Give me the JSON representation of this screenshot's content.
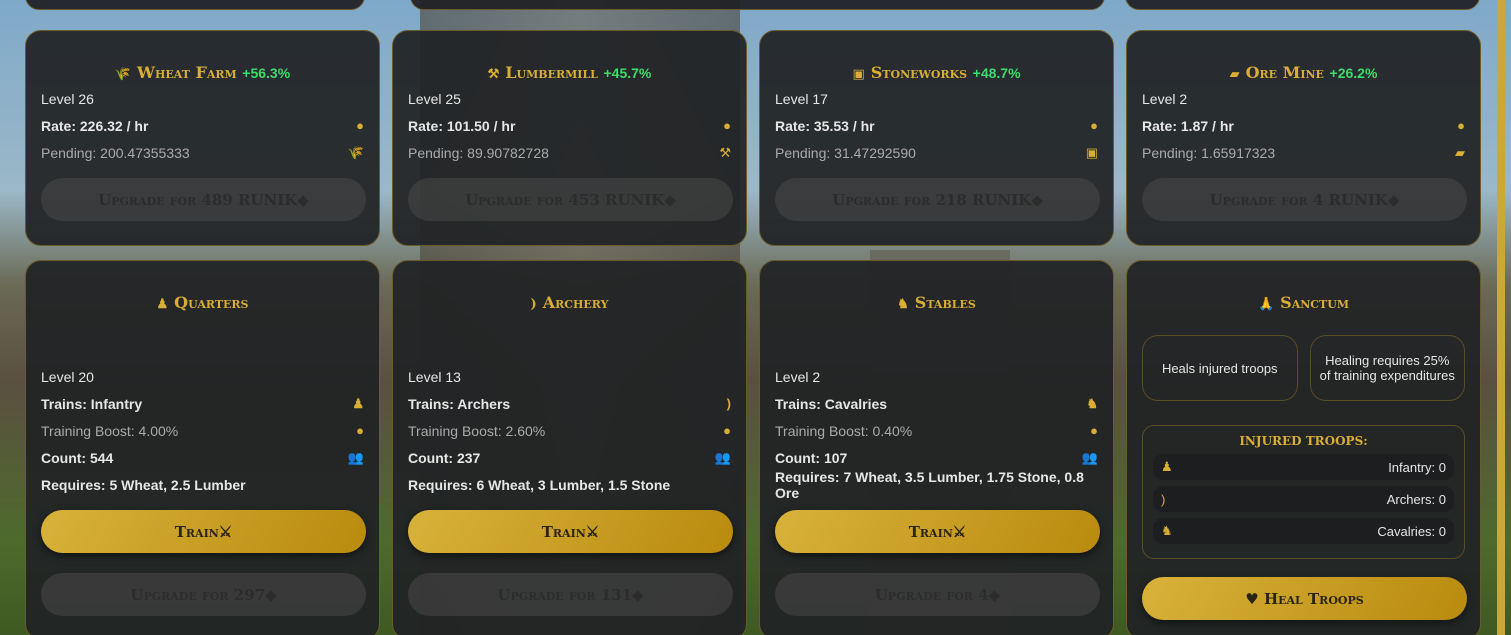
{
  "resources": [
    {
      "name": "Wheat Farm",
      "boost": "+56.3%",
      "icon": "wheat-icon",
      "glyph": "🌾",
      "level": "Level 26",
      "rate": "Rate: 226.32 / hr",
      "pending": "Pending: 200.47355333",
      "upgrade": "Upgrade for 489 RUNIK"
    },
    {
      "name": "Lumbermill",
      "boost": "+45.7%",
      "icon": "axe-icon",
      "glyph": "⚒",
      "level": "Level 25",
      "rate": "Rate: 101.50 / hr",
      "pending": "Pending: 89.90782728",
      "upgrade": "Upgrade for 453 RUNIK"
    },
    {
      "name": "Stoneworks",
      "boost": "+48.7%",
      "icon": "cube-icon",
      "glyph": "▣",
      "level": "Level 17",
      "rate": "Rate: 35.53 / hr",
      "pending": "Pending: 31.47292590",
      "upgrade": "Upgrade for 218 RUNIK"
    },
    {
      "name": "Ore Mine",
      "boost": "+26.2%",
      "icon": "ingot-icon",
      "glyph": "▰",
      "level": "Level 2",
      "rate": "Rate: 1.87 / hr",
      "pending": "Pending: 1.65917323",
      "upgrade": "Upgrade for 4 RUNIK"
    }
  ],
  "military": [
    {
      "name": "Quarters",
      "icon": "infantry-icon",
      "glyph": "♟",
      "level": "Level 20",
      "trains": "Trains: Infantry",
      "boost": "Training Boost: 4.00%",
      "count": "Count: 544",
      "requires": "Requires: 5 Wheat, 2.5 Lumber",
      "train": "Train",
      "upgrade": "Upgrade for 297"
    },
    {
      "name": "Archery",
      "icon": "bow-icon",
      "glyph": ")",
      "level": "Level 13",
      "trains": "Trains: Archers",
      "boost": "Training Boost: 2.60%",
      "count": "Count: 237",
      "requires": "Requires: 6 Wheat, 3 Lumber, 1.5 Stone",
      "train": "Train",
      "upgrade": "Upgrade for 131"
    },
    {
      "name": "Stables",
      "icon": "horse-icon",
      "glyph": "♞",
      "level": "Level 2",
      "trains": "Trains: Cavalries",
      "boost": "Training Boost: 0.40%",
      "count": "Count: 107",
      "requires": "Requires: 7 Wheat, 3.5 Lumber, 1.75 Stone, 0.8 Ore",
      "train": "Train",
      "upgrade": "Upgrade for 4"
    }
  ],
  "sanctum": {
    "name": "Sanctum",
    "info1": "Heals injured troops",
    "info2": "Healing requires 25% of training expenditures",
    "injured_title": "INJURED TROOPS:",
    "injured": [
      "Infantry: 0",
      "Archers: 0",
      "Cavalries: 0"
    ],
    "heal": "Heal Troops"
  },
  "colors": {
    "accent": "#d9ae34",
    "boost": "#3ddc6a"
  }
}
